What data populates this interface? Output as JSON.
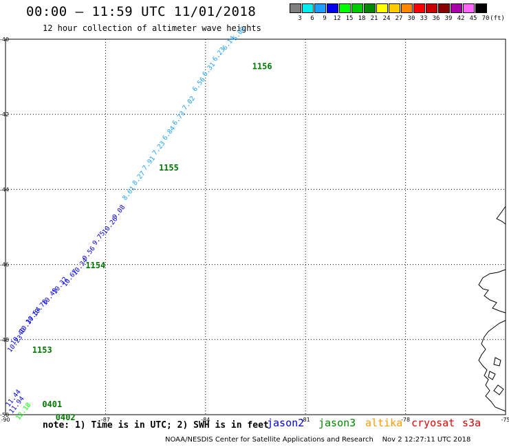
{
  "title": "00:00 – 11:59 UTC 11/01/2018",
  "subtitle": "12 hour collection of altimeter wave heights",
  "legend": {
    "unit": "(ft)",
    "bins": [
      {
        "label": "3",
        "color": "#808080"
      },
      {
        "label": "6",
        "color": "#00eeee"
      },
      {
        "label": "9",
        "color": "#1e9fff"
      },
      {
        "label": "12",
        "color": "#0000ee"
      },
      {
        "label": "15",
        "color": "#00ff00"
      },
      {
        "label": "18",
        "color": "#00cc00"
      },
      {
        "label": "21",
        "color": "#008800"
      },
      {
        "label": "24",
        "color": "#ffff00"
      },
      {
        "label": "27",
        "color": "#ffcc00"
      },
      {
        "label": "30",
        "color": "#ff8800"
      },
      {
        "label": "33",
        "color": "#ff0000"
      },
      {
        "label": "36",
        "color": "#cc0000"
      },
      {
        "label": "39",
        "color": "#880000"
      },
      {
        "label": "42",
        "color": "#aa00aa"
      },
      {
        "label": "45",
        "color": "#ff66ff"
      },
      {
        "label": "70",
        "color": "#000000"
      }
    ]
  },
  "axes": {
    "lat_labels": [
      "-40",
      "-42",
      "-44",
      "-46",
      "-48",
      "-50"
    ],
    "lon_labels": [
      "-90",
      "-87",
      "-84",
      "-81",
      "-78",
      "-75"
    ]
  },
  "track": {
    "labels": [
      {
        "text": "6.00",
        "lon": -83.1,
        "lat": -40.05,
        "color": "#1e9fff"
      },
      {
        "text": "6.14",
        "lon": -83.4,
        "lat": -40.3,
        "color": "#1e9fff"
      },
      {
        "text": "6.23",
        "lon": -83.7,
        "lat": -40.6,
        "color": "#1e9fff"
      },
      {
        "text": "6.31",
        "lon": -84.0,
        "lat": -41.0,
        "color": "#1e9fff"
      },
      {
        "text": "6.56",
        "lon": -84.3,
        "lat": -41.4,
        "color": "#1e9fff"
      },
      {
        "text": "7.02",
        "lon": -84.6,
        "lat": -41.9,
        "color": "#1e9fff"
      },
      {
        "text": "6.73",
        "lon": -84.9,
        "lat": -42.3,
        "color": "#1e9fff"
      },
      {
        "text": "6.84",
        "lon": -85.2,
        "lat": -42.7,
        "color": "#1e9fff"
      },
      {
        "text": "7.23",
        "lon": -85.5,
        "lat": -43.1,
        "color": "#1e9fff"
      },
      {
        "text": "7.91",
        "lon": -85.8,
        "lat": -43.5,
        "color": "#1e9fff"
      },
      {
        "text": "8.27",
        "lon": -86.1,
        "lat": -43.9,
        "color": "#1e9fff"
      },
      {
        "text": "8.61",
        "lon": -86.4,
        "lat": -44.3,
        "color": "#1e9fff"
      },
      {
        "text": "9.08",
        "lon": -86.7,
        "lat": -44.8,
        "color": "#0000ee"
      },
      {
        "text": "10.26",
        "lon": -87.0,
        "lat": -45.2,
        "color": "#0000ee"
      },
      {
        "text": "9.75",
        "lon": -87.3,
        "lat": -45.5,
        "color": "#0000ee"
      },
      {
        "text": "9.56",
        "lon": -87.6,
        "lat": -45.9,
        "color": "#0000ee"
      },
      {
        "text": "10.34",
        "lon": -87.9,
        "lat": -46.3,
        "color": "#0000ee"
      },
      {
        "text": "10.67",
        "lon": -88.2,
        "lat": -46.6,
        "color": "#0000ee"
      },
      {
        "text": "10.32",
        "lon": -88.5,
        "lat": -46.8,
        "color": "#0000ee"
      },
      {
        "text": "10.49",
        "lon": -88.8,
        "lat": -47.1,
        "color": "#0000ee"
      },
      {
        "text": "10.78",
        "lon": -89.1,
        "lat": -47.4,
        "color": "#0000ee"
      },
      {
        "text": "10.54",
        "lon": -89.3,
        "lat": -47.6,
        "color": "#0000ee"
      },
      {
        "text": "10.37",
        "lon": -89.5,
        "lat": -47.85,
        "color": "#0000ee"
      },
      {
        "text": "10.40",
        "lon": -89.75,
        "lat": -48.15,
        "color": "#0000ee"
      },
      {
        "text": "10.23",
        "lon": -89.85,
        "lat": -48.35,
        "color": "#0000ee"
      },
      {
        "text": "11.44",
        "lon": -89.9,
        "lat": -49.8,
        "color": "#0000ee"
      },
      {
        "text": "11.94",
        "lon": -89.8,
        "lat": -49.98,
        "color": "#0000ee"
      },
      {
        "text": "12.18",
        "lon": -89.6,
        "lat": -50.15,
        "color": "#00ff00"
      }
    ],
    "times": [
      {
        "text": "1156",
        "lon": -82.6,
        "lat": -40.8
      },
      {
        "text": "1155",
        "lon": -85.4,
        "lat": -43.5
      },
      {
        "text": "1154",
        "lon": -87.6,
        "lat": -46.1
      },
      {
        "text": "1153",
        "lon": -89.2,
        "lat": -48.35
      },
      {
        "text": "0401",
        "lon": -88.9,
        "lat": -49.8
      },
      {
        "text": "0402",
        "lon": -88.5,
        "lat": -50.15
      }
    ]
  },
  "note": "note: 1) Time is in UTC; 2) SWH is in feet",
  "satellites": [
    {
      "name": "jason2",
      "color": "#0000dd"
    },
    {
      "name": "jason3",
      "color": "#008800"
    },
    {
      "name": "altika",
      "color": "#ff9900"
    },
    {
      "name": "cryosat",
      "color": "#ee0000"
    },
    {
      "name": "s3a",
      "color": "#cc0000"
    }
  ],
  "credit": "NOAA/NESDIS Center for Satellite Applications and Research",
  "timestamp": "Nov  2 12:27:11 UTC 2018"
}
